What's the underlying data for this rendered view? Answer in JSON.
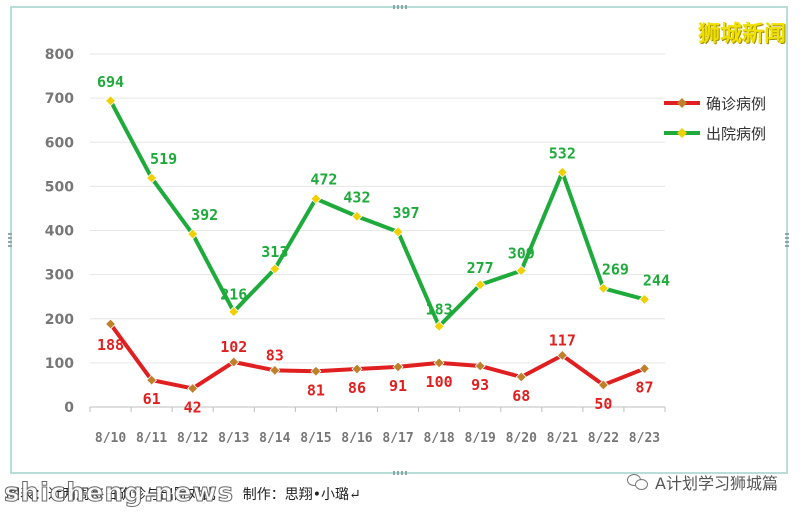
{
  "brand": "狮城新闻",
  "caption": "图表：近两周每日确诊与出院对比      制作：思翔•小璐↵",
  "watermark_left": "shicheng.news",
  "watermark_right": "A计划学习狮城篇",
  "chart_data": {
    "type": "line",
    "title": "",
    "xlabel": "",
    "ylabel": "",
    "categories": [
      "8/10",
      "8/11",
      "8/12",
      "8/13",
      "8/14",
      "8/15",
      "8/16",
      "8/17",
      "8/18",
      "8/19",
      "8/20",
      "8/21",
      "8/22",
      "8/23"
    ],
    "ylim": [
      0,
      800
    ],
    "yticks": [
      0,
      100,
      200,
      300,
      400,
      500,
      600,
      700,
      800
    ],
    "grid": true,
    "legend_position": "right",
    "series": [
      {
        "name": "确诊病例",
        "color": "#e02020",
        "marker_color": "#c0802a",
        "values": [
          188,
          61,
          42,
          102,
          83,
          81,
          86,
          91,
          100,
          93,
          68,
          117,
          50,
          87
        ]
      },
      {
        "name": "出院病例",
        "color": "#1faa3c",
        "marker_color": "#f0d000",
        "values": [
          694,
          519,
          392,
          216,
          313,
          472,
          432,
          397,
          183,
          277,
          309,
          532,
          269,
          244
        ]
      }
    ]
  }
}
